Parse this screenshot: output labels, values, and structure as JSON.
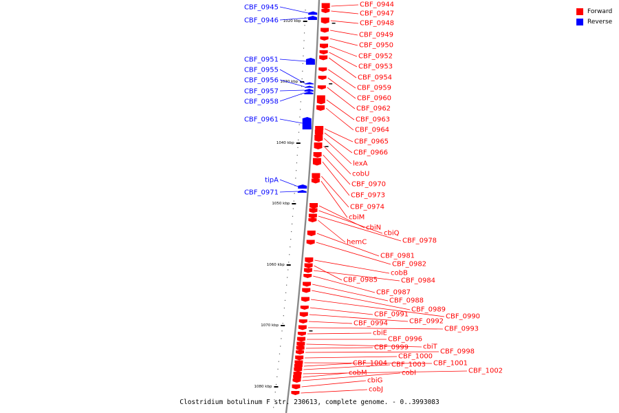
{
  "caption": "Clostridium botulinum F str. 230613, complete genome. - 0..3993083",
  "legend": [
    {
      "label": "Forward",
      "color": "#ff0000"
    },
    {
      "label": "Reverse",
      "color": "#0000ff"
    }
  ],
  "colors": {
    "forward": "#ff0000",
    "reverse": "#0000ff",
    "backbone": "#888888"
  },
  "ticks": [
    "1020 kbp",
    "1030 kbp",
    "1040 kbp",
    "1050 kbp",
    "1060 kbp",
    "1070 kbp",
    "1080 kbp"
  ],
  "reverse_genes": [
    "CBF_0945",
    "CBF_0946",
    "CBF_0951",
    "CBF_0955",
    "CBF_0956",
    "CBF_0957",
    "CBF_0958",
    "CBF_0961",
    "tipA",
    "CBF_0971"
  ],
  "forward_genes": [
    "CBF_0944",
    "CBF_0947",
    "CBF_0948",
    "CBF_0949",
    "CBF_0950",
    "CBF_0952",
    "CBF_0953",
    "CBF_0954",
    "CBF_0959",
    "CBF_0960",
    "CBF_0962",
    "CBF_0963",
    "CBF_0964",
    "CBF_0965",
    "CBF_0966",
    "lexA",
    "cobU",
    "CBF_0970",
    "CBF_0973",
    "CBF_0974",
    "cbiM",
    "cbiN",
    "cbiQ",
    "CBF_0978",
    "hemC",
    "CBF_0981",
    "CBF_0982",
    "cobB",
    "CBF_0985",
    "CBF_0984",
    "CBF_0987",
    "CBF_0988",
    "CBF_0989",
    "CBF_0990",
    "CBF_0991",
    "CBF_0992",
    "CBF_0994",
    "CBF_0993",
    "cbiE",
    "CBF_0996",
    "cbiT",
    "CBF_0999",
    "CBF_0998",
    "CBF_1000",
    "CBF_1001",
    "CBF_1004",
    "CBF_1003",
    "CBF_1002",
    "cobM",
    "cobI",
    "cbiG",
    "cobJ"
  ]
}
